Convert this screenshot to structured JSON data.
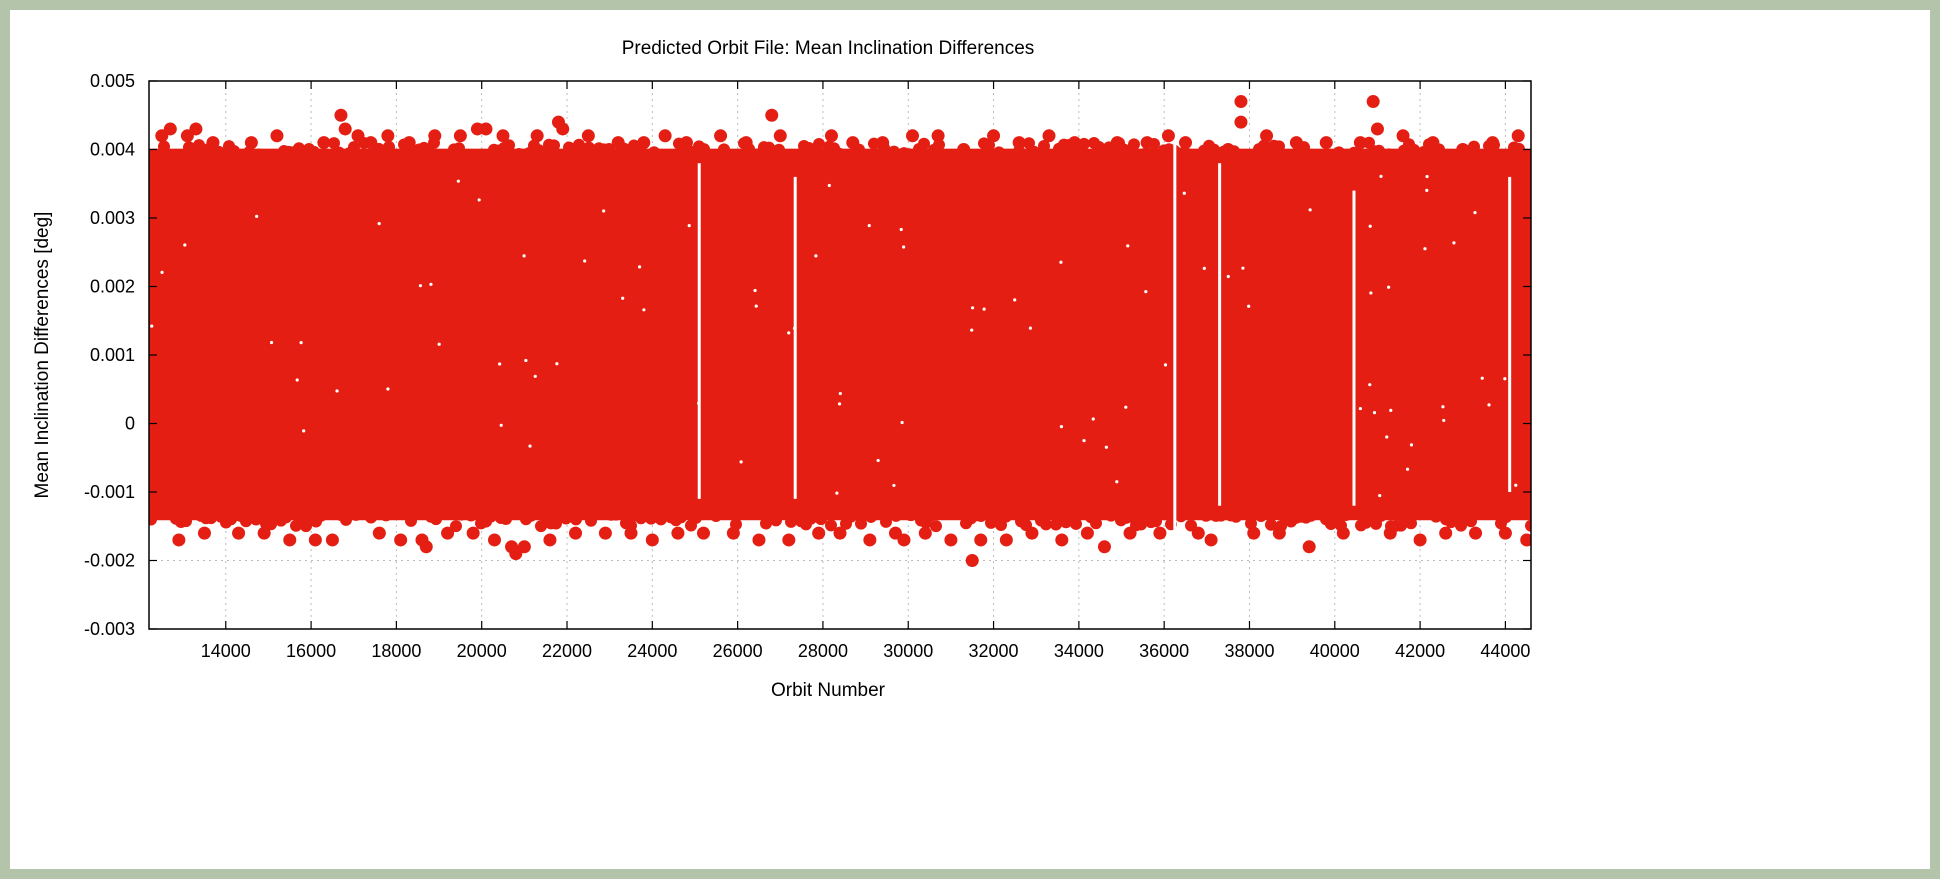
{
  "chart_data": {
    "type": "scatter",
    "title": "Predicted Orbit File: Mean Inclination Differences",
    "xlabel": "Orbit Number",
    "ylabel": "Mean Inclination Differences [deg]",
    "xlim": [
      12200,
      44600
    ],
    "ylim": [
      -0.003,
      0.005
    ],
    "xticks": [
      14000,
      16000,
      18000,
      20000,
      22000,
      24000,
      26000,
      28000,
      30000,
      32000,
      34000,
      36000,
      38000,
      40000,
      42000,
      44000
    ],
    "xtick_labels": [
      "14000",
      "16000",
      "18000",
      "20000",
      "22000",
      "24000",
      "26000",
      "28000",
      "30000",
      "32000",
      "34000",
      "36000",
      "38000",
      "40000",
      "42000",
      "44000"
    ],
    "yticks": [
      -0.003,
      -0.002,
      -0.001,
      0,
      0.001,
      0.002,
      0.003,
      0.004,
      0.005
    ],
    "ytick_labels": [
      "-0.003",
      "-0.002",
      "-0.001",
      "0",
      "0.001",
      "0.002",
      "0.003",
      "0.004",
      "0.005"
    ],
    "grid": true,
    "colors": {
      "marker": "#e41e12",
      "frame": "#b3c4aa"
    },
    "series": [
      {
        "name": "",
        "band": {
          "x_start": 12200,
          "x_end": 44600,
          "y_low": -0.0015,
          "y_high": 0.0041
        },
        "gaps": [
          {
            "x": 25100,
            "y_low": -0.0011,
            "y_high": 0.0038
          },
          {
            "x": 27350,
            "y_low": -0.0011,
            "y_high": 0.0036
          },
          {
            "x": 36250,
            "y_low": -0.0016,
            "y_high": 0.0042
          },
          {
            "x": 37300,
            "y_low": -0.0012,
            "y_high": 0.0038
          },
          {
            "x": 40450,
            "y_low": -0.0012,
            "y_high": 0.0034
          },
          {
            "x": 44100,
            "y_low": -0.001,
            "y_high": 0.0036
          }
        ],
        "points": [
          [
            12300,
            0.0039
          ],
          [
            12500,
            0.0042
          ],
          [
            12700,
            0.0043
          ],
          [
            12900,
            -0.0017
          ],
          [
            13100,
            0.0042
          ],
          [
            13300,
            0.0043
          ],
          [
            13500,
            -0.0016
          ],
          [
            13700,
            0.0041
          ],
          [
            14100,
            0.004
          ],
          [
            14300,
            -0.0016
          ],
          [
            14600,
            0.0041
          ],
          [
            14900,
            -0.0016
          ],
          [
            15200,
            0.0042
          ],
          [
            15500,
            -0.0017
          ],
          [
            15800,
            0.0039
          ],
          [
            16100,
            -0.0017
          ],
          [
            16300,
            0.0041
          ],
          [
            16500,
            -0.0017
          ],
          [
            16700,
            0.0045
          ],
          [
            16800,
            0.0043
          ],
          [
            17100,
            0.0042
          ],
          [
            17400,
            0.0041
          ],
          [
            17600,
            -0.0016
          ],
          [
            17800,
            0.0042
          ],
          [
            18100,
            -0.0017
          ],
          [
            18300,
            0.0041
          ],
          [
            18600,
            -0.0017
          ],
          [
            18700,
            -0.0018
          ],
          [
            18900,
            0.0042
          ],
          [
            19200,
            -0.0016
          ],
          [
            19500,
            0.0042
          ],
          [
            19800,
            -0.0016
          ],
          [
            19900,
            0.0043
          ],
          [
            20100,
            0.0043
          ],
          [
            20300,
            -0.0017
          ],
          [
            20500,
            0.0042
          ],
          [
            20700,
            -0.0018
          ],
          [
            20800,
            -0.0019
          ],
          [
            21000,
            -0.0018
          ],
          [
            21300,
            0.0042
          ],
          [
            21600,
            -0.0017
          ],
          [
            21800,
            0.0044
          ],
          [
            21900,
            0.0043
          ],
          [
            22200,
            -0.0016
          ],
          [
            22500,
            0.0042
          ],
          [
            22900,
            -0.0016
          ],
          [
            23200,
            0.0041
          ],
          [
            23500,
            -0.0016
          ],
          [
            23800,
            0.0041
          ],
          [
            24000,
            -0.0017
          ],
          [
            24300,
            0.0042
          ],
          [
            24600,
            -0.0016
          ],
          [
            24800,
            0.0041
          ],
          [
            25200,
            -0.0016
          ],
          [
            25600,
            0.0042
          ],
          [
            25900,
            -0.0016
          ],
          [
            26200,
            0.0041
          ],
          [
            26500,
            -0.0017
          ],
          [
            26800,
            0.0045
          ],
          [
            27000,
            0.0042
          ],
          [
            27200,
            -0.0017
          ],
          [
            27600,
            0.004
          ],
          [
            27900,
            -0.0016
          ],
          [
            28200,
            0.0042
          ],
          [
            28400,
            -0.0016
          ],
          [
            28700,
            0.0041
          ],
          [
            29100,
            -0.0017
          ],
          [
            29400,
            0.0041
          ],
          [
            29700,
            -0.0016
          ],
          [
            29900,
            -0.0017
          ],
          [
            30100,
            0.0042
          ],
          [
            30400,
            -0.0016
          ],
          [
            30700,
            0.0042
          ],
          [
            31000,
            -0.0017
          ],
          [
            31300,
            0.004
          ],
          [
            31500,
            -0.002
          ],
          [
            31700,
            -0.0017
          ],
          [
            32000,
            0.0042
          ],
          [
            32300,
            -0.0017
          ],
          [
            32600,
            0.0041
          ],
          [
            32900,
            -0.0016
          ],
          [
            33300,
            0.0042
          ],
          [
            33600,
            -0.0017
          ],
          [
            33900,
            0.0041
          ],
          [
            34200,
            -0.0016
          ],
          [
            34600,
            -0.0018
          ],
          [
            34900,
            0.0041
          ],
          [
            35200,
            -0.0016
          ],
          [
            35600,
            0.0041
          ],
          [
            35900,
            -0.0016
          ],
          [
            36100,
            0.0042
          ],
          [
            36500,
            0.0041
          ],
          [
            36800,
            -0.0016
          ],
          [
            37100,
            -0.0017
          ],
          [
            37500,
            0.004
          ],
          [
            37800,
            0.0047
          ],
          [
            37800,
            0.0044
          ],
          [
            38100,
            -0.0016
          ],
          [
            38400,
            0.0042
          ],
          [
            38700,
            -0.0016
          ],
          [
            39100,
            0.0041
          ],
          [
            39400,
            -0.0018
          ],
          [
            39800,
            0.0041
          ],
          [
            40200,
            -0.0016
          ],
          [
            40600,
            0.0041
          ],
          [
            40900,
            0.0047
          ],
          [
            41000,
            0.0043
          ],
          [
            41300,
            -0.0016
          ],
          [
            41600,
            0.0042
          ],
          [
            42000,
            -0.0017
          ],
          [
            42300,
            0.0041
          ],
          [
            42600,
            -0.0016
          ],
          [
            43000,
            0.004
          ],
          [
            43300,
            -0.0016
          ],
          [
            43700,
            0.0041
          ],
          [
            44000,
            -0.0016
          ],
          [
            44300,
            0.0042
          ],
          [
            44500,
            -0.0017
          ]
        ]
      }
    ]
  }
}
